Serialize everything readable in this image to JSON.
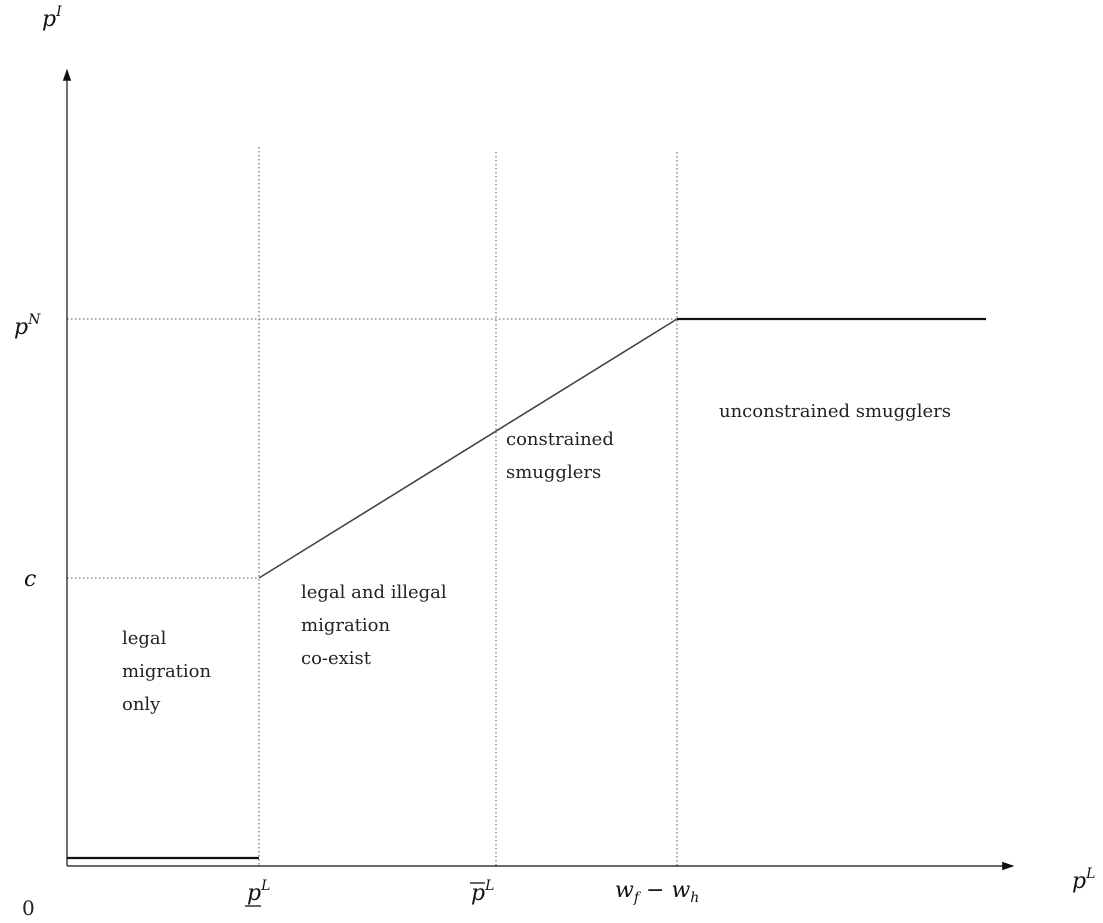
{
  "axes": {
    "y_label": {
      "base": "p",
      "sup": "I"
    },
    "x_label": {
      "base": "p",
      "sup": "L"
    },
    "origin": "0"
  },
  "y_ticks": {
    "pN": {
      "base": "p",
      "sup": "N"
    },
    "c": "c"
  },
  "x_ticks": {
    "p_lower": {
      "base": "p",
      "sup": "L",
      "decoration": "underline"
    },
    "p_upper": {
      "base": "p",
      "sup": "L",
      "decoration": "overline"
    },
    "wage_gap": {
      "a": "w",
      "a_sub": "f",
      "op": " − ",
      "b": "w",
      "b_sub": "h"
    }
  },
  "regions": {
    "legal_only": [
      "legal",
      "migration",
      "only"
    ],
    "coexist": [
      "legal and illegal",
      "migration",
      "co-exist"
    ],
    "constrained": [
      "constrained",
      "smugglers"
    ],
    "unconstrained": [
      "unconstrained smugglers"
    ]
  },
  "colors": {
    "axis": "#111111",
    "curve": "#333333",
    "dotted": "#555555"
  }
}
